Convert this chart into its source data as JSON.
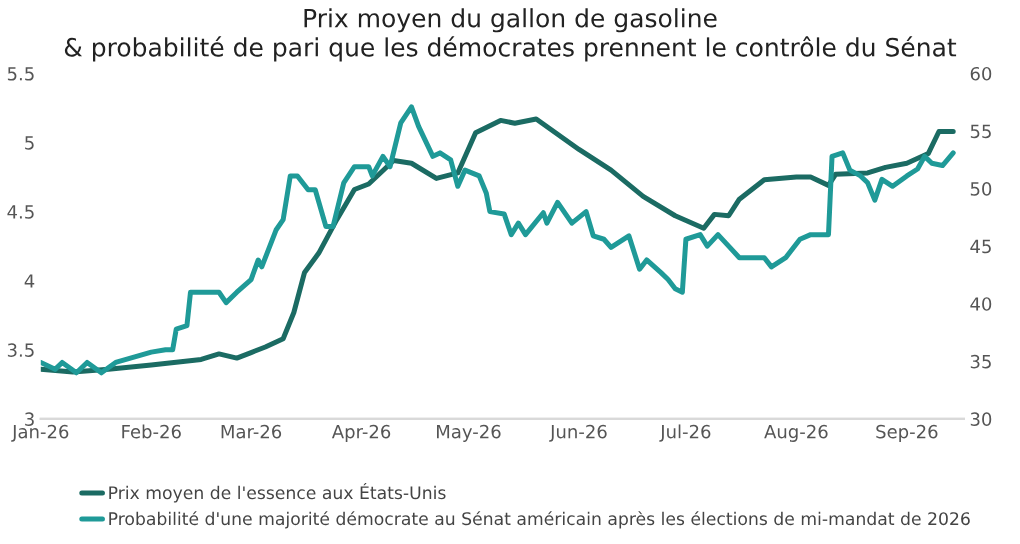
{
  "chart_data": {
    "type": "line",
    "title": "Prix moyen du gallon de gasoline\n& probabilité de pari que les démocrates prennent le contrôle du Sénat",
    "xlim": [
      "2026-01-01",
      "2026-09-17"
    ],
    "xticks": [
      {
        "value": "2026-01-01",
        "label": "Jan-26"
      },
      {
        "value": "2026-02-01",
        "label": "Feb-26"
      },
      {
        "value": "2026-03-01",
        "label": "Mar-26"
      },
      {
        "value": "2026-04-01",
        "label": "Apr-26"
      },
      {
        "value": "2026-05-01",
        "label": "May-26"
      },
      {
        "value": "2026-06-01",
        "label": "Jun-26"
      },
      {
        "value": "2026-07-01",
        "label": "Jul-26"
      },
      {
        "value": "2026-08-01",
        "label": "Aug-26"
      },
      {
        "value": "2026-09-01",
        "label": "Sep-26"
      }
    ],
    "ylim": [
      3,
      5.5
    ],
    "yticks": [
      3,
      3.5,
      4,
      4.5,
      5,
      5.5
    ],
    "y2lim": [
      30,
      60
    ],
    "y2ticks": [
      30,
      35,
      40,
      45,
      50,
      55,
      60
    ],
    "grid": false,
    "legend": "bottom",
    "series": [
      {
        "name": "Prix moyen de l'essence aux États-Unis",
        "color": "#1b6b63",
        "x": [
          "2026-01-01",
          "2026-01-10",
          "2026-01-20",
          "2026-02-01",
          "2026-02-15",
          "2026-02-20",
          "2026-02-25",
          "2026-03-01",
          "2026-03-05",
          "2026-03-10",
          "2026-03-13",
          "2026-03-16",
          "2026-03-20",
          "2026-03-25",
          "2026-03-30",
          "2026-04-03",
          "2026-04-10",
          "2026-04-15",
          "2026-04-22",
          "2026-04-28",
          "2026-05-03",
          "2026-05-10",
          "2026-05-14",
          "2026-05-20",
          "2026-06-01",
          "2026-06-10",
          "2026-06-19",
          "2026-06-28",
          "2026-07-06",
          "2026-07-09",
          "2026-07-13",
          "2026-07-16",
          "2026-07-23",
          "2026-08-01",
          "2026-08-05",
          "2026-08-10",
          "2026-08-12",
          "2026-08-21",
          "2026-08-26",
          "2026-09-01",
          "2026-09-07",
          "2026-09-10",
          "2026-09-14"
        ],
        "values": [
          3.36,
          3.34,
          3.36,
          3.39,
          3.43,
          3.47,
          3.44,
          3.48,
          3.52,
          3.58,
          3.77,
          4.06,
          4.2,
          4.44,
          4.66,
          4.7,
          4.87,
          4.85,
          4.74,
          4.78,
          5.07,
          5.16,
          5.14,
          5.17,
          4.95,
          4.8,
          4.61,
          4.47,
          4.38,
          4.48,
          4.47,
          4.59,
          4.73,
          4.75,
          4.75,
          4.69,
          4.77,
          4.78,
          4.82,
          4.85,
          4.92,
          5.08,
          5.08
        ]
      },
      {
        "name": "Probabilité d'une majorité démocrate au Sénat américain après les élections de mi-mandat de 2026",
        "color": "#1f9a98",
        "axis": "y2",
        "x": [
          "2026-01-01",
          "2026-01-05",
          "2026-01-07",
          "2026-01-11",
          "2026-01-14",
          "2026-01-18",
          "2026-01-22",
          "2026-02-01",
          "2026-02-05",
          "2026-02-07",
          "2026-02-08",
          "2026-02-11",
          "2026-02-12",
          "2026-02-20",
          "2026-02-22",
          "2026-02-25",
          "2026-03-01",
          "2026-03-03",
          "2026-03-04",
          "2026-03-08",
          "2026-03-10",
          "2026-03-12",
          "2026-03-14",
          "2026-03-17",
          "2026-03-19",
          "2026-03-22",
          "2026-03-24",
          "2026-03-27",
          "2026-03-30",
          "2026-04-03",
          "2026-04-04",
          "2026-04-07",
          "2026-04-09",
          "2026-04-12",
          "2026-04-15",
          "2026-04-17",
          "2026-04-21",
          "2026-04-23",
          "2026-04-26",
          "2026-04-28",
          "2026-04-30",
          "2026-05-04",
          "2026-05-06",
          "2026-05-07",
          "2026-05-11",
          "2026-05-13",
          "2026-05-15",
          "2026-05-17",
          "2026-05-22",
          "2026-05-23",
          "2026-05-26",
          "2026-05-30",
          "2026-06-03",
          "2026-06-05",
          "2026-06-08",
          "2026-06-10",
          "2026-06-15",
          "2026-06-18",
          "2026-06-20",
          "2026-06-24",
          "2026-06-26",
          "2026-06-28",
          "2026-06-30",
          "2026-07-01",
          "2026-07-05",
          "2026-07-07",
          "2026-07-10",
          "2026-07-13",
          "2026-07-16",
          "2026-07-23",
          "2026-07-25",
          "2026-07-29",
          "2026-08-02",
          "2026-08-05",
          "2026-08-10",
          "2026-08-11",
          "2026-08-14",
          "2026-08-16",
          "2026-08-19",
          "2026-08-21",
          "2026-08-23",
          "2026-08-25",
          "2026-08-28",
          "2026-09-01",
          "2026-09-04",
          "2026-09-06",
          "2026-09-08",
          "2026-09-11",
          "2026-09-14"
        ],
        "values": [
          34.9,
          34.3,
          34.9,
          34.0,
          34.9,
          34.0,
          34.9,
          35.8,
          36.0,
          36.0,
          37.8,
          38.1,
          41.0,
          41.0,
          40.1,
          41.0,
          42.1,
          43.8,
          43.2,
          46.4,
          47.3,
          51.1,
          51.1,
          49.9,
          49.9,
          46.7,
          46.7,
          50.5,
          51.9,
          51.9,
          51.1,
          52.8,
          51.9,
          55.7,
          57.1,
          55.4,
          52.8,
          53.1,
          52.5,
          50.2,
          51.6,
          51.1,
          49.6,
          48.0,
          47.8,
          46.0,
          47.0,
          46.0,
          47.9,
          47.0,
          48.8,
          47.0,
          48.0,
          45.9,
          45.6,
          44.9,
          45.9,
          43.0,
          43.8,
          42.7,
          42.1,
          41.3,
          41.0,
          45.6,
          46.0,
          45.0,
          46.0,
          45.0,
          44.0,
          44.0,
          43.2,
          44.0,
          45.6,
          46.0,
          46.0,
          52.8,
          53.1,
          51.6,
          51.1,
          50.5,
          49.0,
          50.8,
          50.2,
          51.1,
          51.7,
          52.8,
          52.2,
          52.0,
          53.1
        ]
      }
    ]
  }
}
